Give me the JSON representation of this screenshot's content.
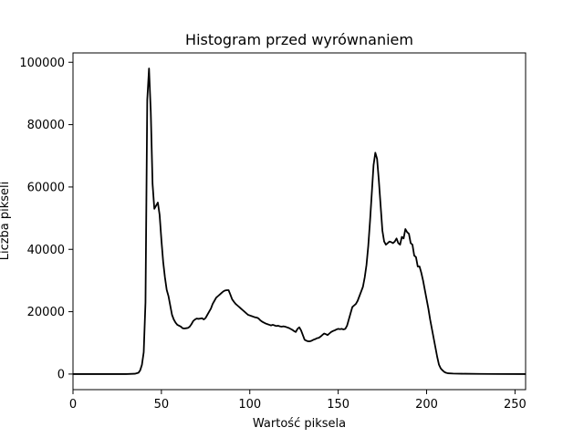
{
  "chart_data": {
    "type": "line",
    "title": "Histogram przed wyrównaniem",
    "xlabel": "Wartość piksela",
    "ylabel": "Liczba pikseli",
    "xlim": [
      0,
      256
    ],
    "ylim": [
      -5000,
      103000
    ],
    "x_ticks": [
      0,
      50,
      100,
      150,
      200,
      250
    ],
    "y_ticks": [
      0,
      20000,
      40000,
      60000,
      80000,
      100000
    ],
    "grid": false,
    "legend": "none",
    "series": [
      {
        "color": "#000000",
        "points": [
          [
            0,
            0
          ],
          [
            20,
            0
          ],
          [
            30,
            0
          ],
          [
            35,
            100
          ],
          [
            37,
            400
          ],
          [
            38,
            1200
          ],
          [
            39,
            3000
          ],
          [
            40,
            7000
          ],
          [
            41,
            23000
          ],
          [
            42,
            88000
          ],
          [
            43,
            98000
          ],
          [
            44,
            84000
          ],
          [
            45,
            61000
          ],
          [
            46,
            53000
          ],
          [
            47,
            54000
          ],
          [
            48,
            55000
          ],
          [
            49,
            51000
          ],
          [
            50,
            43000
          ],
          [
            51,
            36000
          ],
          [
            52,
            31000
          ],
          [
            53,
            27000
          ],
          [
            54,
            25000
          ],
          [
            55,
            22000
          ],
          [
            56,
            19000
          ],
          [
            57,
            17500
          ],
          [
            58,
            16500
          ],
          [
            59,
            15800
          ],
          [
            60,
            15500
          ],
          [
            61,
            15200
          ],
          [
            62,
            14700
          ],
          [
            63,
            14600
          ],
          [
            64,
            14700
          ],
          [
            65,
            14800
          ],
          [
            66,
            15200
          ],
          [
            67,
            16000
          ],
          [
            68,
            17000
          ],
          [
            69,
            17500
          ],
          [
            70,
            17800
          ],
          [
            71,
            17700
          ],
          [
            72,
            17800
          ],
          [
            73,
            17900
          ],
          [
            74,
            17500
          ],
          [
            75,
            18000
          ],
          [
            76,
            19000
          ],
          [
            77,
            20000
          ],
          [
            78,
            21000
          ],
          [
            79,
            22500
          ],
          [
            80,
            23500
          ],
          [
            81,
            24500
          ],
          [
            82,
            25000
          ],
          [
            83,
            25500
          ],
          [
            84,
            26000
          ],
          [
            85,
            26500
          ],
          [
            86,
            26800
          ],
          [
            87,
            26900
          ],
          [
            88,
            26900
          ],
          [
            89,
            25500
          ],
          [
            90,
            24000
          ],
          [
            91,
            23200
          ],
          [
            92,
            22500
          ],
          [
            93,
            22000
          ],
          [
            94,
            21500
          ],
          [
            95,
            21000
          ],
          [
            96,
            20500
          ],
          [
            97,
            20000
          ],
          [
            98,
            19500
          ],
          [
            99,
            19000
          ],
          [
            100,
            18800
          ],
          [
            101,
            18600
          ],
          [
            102,
            18400
          ],
          [
            103,
            18200
          ],
          [
            104,
            18100
          ],
          [
            105,
            17800
          ],
          [
            106,
            17200
          ],
          [
            107,
            16800
          ],
          [
            108,
            16500
          ],
          [
            109,
            16200
          ],
          [
            110,
            16000
          ],
          [
            111,
            15800
          ],
          [
            112,
            15600
          ],
          [
            113,
            15800
          ],
          [
            114,
            15600
          ],
          [
            115,
            15400
          ],
          [
            116,
            15500
          ],
          [
            117,
            15300
          ],
          [
            118,
            15200
          ],
          [
            119,
            15300
          ],
          [
            120,
            15200
          ],
          [
            121,
            15000
          ],
          [
            122,
            14800
          ],
          [
            123,
            14500
          ],
          [
            124,
            14200
          ],
          [
            125,
            13800
          ],
          [
            126,
            13500
          ],
          [
            127,
            14500
          ],
          [
            128,
            15000
          ],
          [
            129,
            14000
          ],
          [
            130,
            12500
          ],
          [
            131,
            11000
          ],
          [
            132,
            10700
          ],
          [
            133,
            10500
          ],
          [
            134,
            10500
          ],
          [
            135,
            10700
          ],
          [
            136,
            11000
          ],
          [
            137,
            11200
          ],
          [
            138,
            11500
          ],
          [
            139,
            11600
          ],
          [
            140,
            12000
          ],
          [
            141,
            12500
          ],
          [
            142,
            13000
          ],
          [
            143,
            12800
          ],
          [
            144,
            12500
          ],
          [
            145,
            13000
          ],
          [
            146,
            13500
          ],
          [
            147,
            13800
          ],
          [
            148,
            14000
          ],
          [
            149,
            14300
          ],
          [
            150,
            14500
          ],
          [
            151,
            14400
          ],
          [
            152,
            14500
          ],
          [
            153,
            14300
          ],
          [
            154,
            14500
          ],
          [
            155,
            15500
          ],
          [
            156,
            17500
          ],
          [
            157,
            19500
          ],
          [
            158,
            21500
          ],
          [
            159,
            22000
          ],
          [
            160,
            22500
          ],
          [
            161,
            23500
          ],
          [
            162,
            25000
          ],
          [
            163,
            26500
          ],
          [
            164,
            28000
          ],
          [
            165,
            31000
          ],
          [
            166,
            35000
          ],
          [
            167,
            41000
          ],
          [
            168,
            49000
          ],
          [
            169,
            58000
          ],
          [
            170,
            67000
          ],
          [
            171,
            71000
          ],
          [
            172,
            69000
          ],
          [
            173,
            62000
          ],
          [
            174,
            54000
          ],
          [
            175,
            46000
          ],
          [
            176,
            42500
          ],
          [
            177,
            41500
          ],
          [
            178,
            42000
          ],
          [
            179,
            42500
          ],
          [
            180,
            42300
          ],
          [
            181,
            42000
          ],
          [
            182,
            42500
          ],
          [
            183,
            43500
          ],
          [
            184,
            42000
          ],
          [
            185,
            41500
          ],
          [
            186,
            44000
          ],
          [
            187,
            43500
          ],
          [
            188,
            46500
          ],
          [
            189,
            45500
          ],
          [
            190,
            45000
          ],
          [
            191,
            42000
          ],
          [
            192,
            41500
          ],
          [
            193,
            38000
          ],
          [
            194,
            37500
          ],
          [
            195,
            34500
          ],
          [
            196,
            34500
          ],
          [
            197,
            32500
          ],
          [
            198,
            30000
          ],
          [
            199,
            27000
          ],
          [
            200,
            24000
          ],
          [
            201,
            21000
          ],
          [
            202,
            17500
          ],
          [
            203,
            14500
          ],
          [
            204,
            11500
          ],
          [
            205,
            8500
          ],
          [
            206,
            5500
          ],
          [
            207,
            3000
          ],
          [
            208,
            1800
          ],
          [
            209,
            1200
          ],
          [
            210,
            700
          ],
          [
            211,
            400
          ],
          [
            212,
            250
          ],
          [
            215,
            150
          ],
          [
            220,
            100
          ],
          [
            230,
            50
          ],
          [
            240,
            20
          ],
          [
            256,
            0
          ]
        ]
      }
    ]
  }
}
